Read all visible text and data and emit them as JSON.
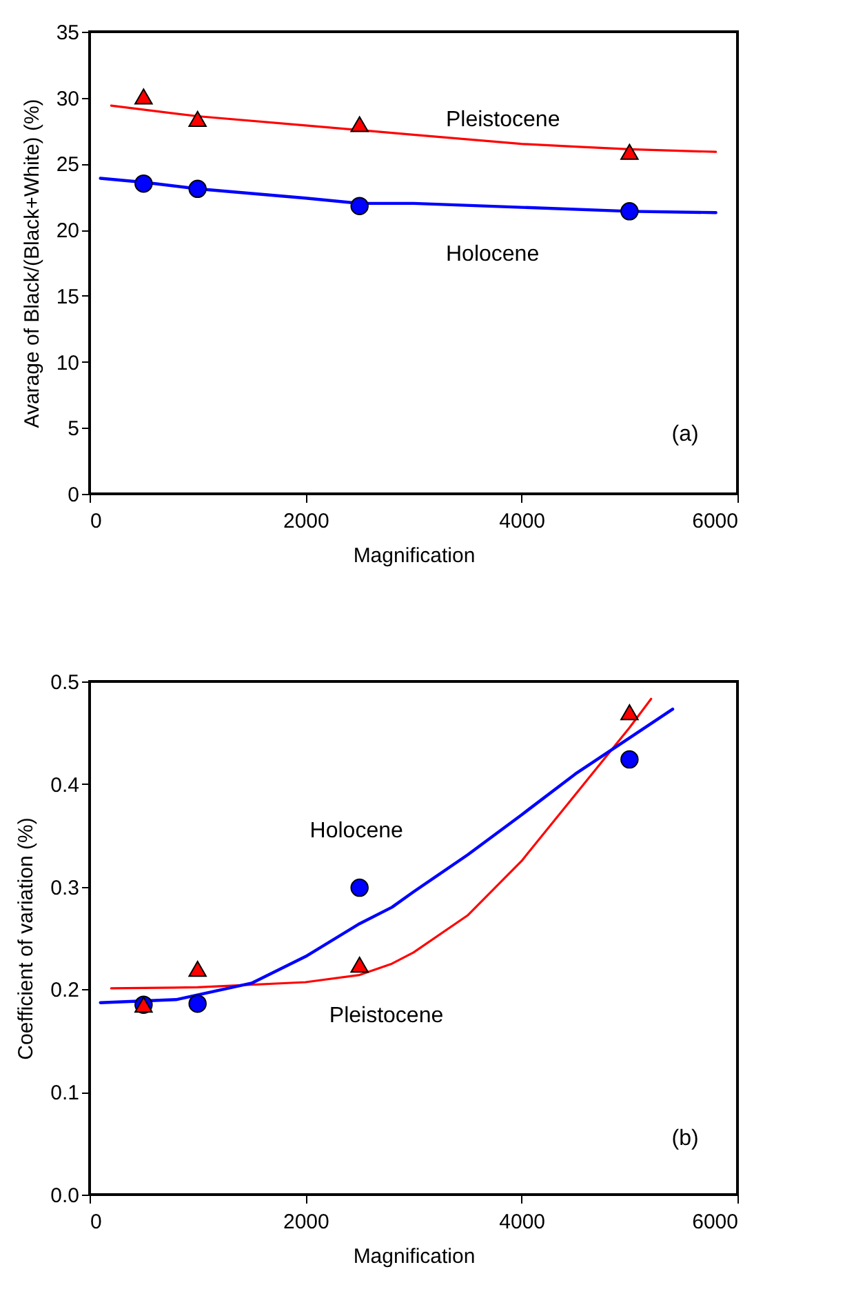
{
  "chart_data": [
    {
      "type": "scatter",
      "xlabel": "Magnification",
      "ylabel": "Avarage of  Black/(Black+White)  (%)",
      "xlim": [
        0,
        6000
      ],
      "xticks": [
        0,
        2000,
        4000,
        6000
      ],
      "ylim": [
        0,
        35
      ],
      "yticks": [
        0,
        5,
        10,
        15,
        20,
        25,
        30,
        35
      ],
      "grid": false,
      "series": [
        {
          "type": "line",
          "color": "#ff0000",
          "x": [
            200,
            1000,
            2000,
            3000,
            4000,
            4500,
            5000,
            5800
          ],
          "values": [
            29.4,
            28.6,
            27.9,
            27.2,
            26.5,
            26.3,
            26.1,
            25.9
          ]
        },
        {
          "type": "line",
          "color": "#0000ff",
          "x": [
            100,
            500,
            1000,
            2000,
            2500,
            3000,
            4000,
            5000,
            5800
          ],
          "values": [
            23.9,
            23.6,
            23.1,
            22.4,
            22.0,
            22.0,
            21.7,
            21.4,
            21.3
          ]
        },
        {
          "type": "scatter",
          "marker": "triangle",
          "color": "#ff0000",
          "x": [
            500,
            1000,
            2500,
            5000
          ],
          "values": [
            30.1,
            28.4,
            28.0,
            25.9
          ]
        },
        {
          "type": "scatter",
          "marker": "circle",
          "color": "#0000ff",
          "x": [
            500,
            1000,
            2500,
            5000
          ],
          "values": [
            23.5,
            23.1,
            21.8,
            21.4
          ]
        }
      ],
      "annotations": [
        "Pleistocene",
        "Holocene",
        "(a)"
      ]
    },
    {
      "type": "scatter",
      "xlabel": "Magnification",
      "ylabel": "Coefficient of variation  (%)",
      "xlim": [
        0,
        6000
      ],
      "xticks": [
        0,
        2000,
        4000,
        6000
      ],
      "ylim": [
        0,
        0.5
      ],
      "yticks": [
        {
          "value": 0,
          "label": "0.0"
        },
        0.1,
        0.2,
        0.3,
        0.4,
        0.5
      ],
      "grid": false,
      "series": [
        {
          "type": "line",
          "color": "#ff0000",
          "x": [
            200,
            1000,
            2000,
            2500,
            2800,
            3000,
            3500,
            4000,
            4500,
            5000,
            5200
          ],
          "values": [
            0.201,
            0.202,
            0.207,
            0.214,
            0.225,
            0.236,
            0.272,
            0.325,
            0.39,
            0.455,
            0.483
          ]
        },
        {
          "type": "line",
          "color": "#0000ff",
          "x": [
            100,
            800,
            1500,
            2000,
            2500,
            2800,
            3000,
            3500,
            4000,
            4500,
            5000,
            5400
          ],
          "values": [
            0.187,
            0.19,
            0.206,
            0.232,
            0.264,
            0.28,
            0.295,
            0.331,
            0.37,
            0.41,
            0.445,
            0.473
          ]
        },
        {
          "type": "scatter",
          "marker": "circle",
          "color": "#0000ff",
          "x": [
            500,
            1000,
            2500,
            5000
          ],
          "values": [
            0.185,
            0.186,
            0.299,
            0.424
          ]
        },
        {
          "type": "scatter",
          "marker": "triangle",
          "color": "#ff0000",
          "x": [
            500,
            1000,
            2500,
            5000
          ],
          "values": [
            0.185,
            0.22,
            0.224,
            0.47
          ]
        }
      ],
      "annotations": [
        "Holocene",
        "Pleistocene",
        "(b)"
      ]
    }
  ]
}
